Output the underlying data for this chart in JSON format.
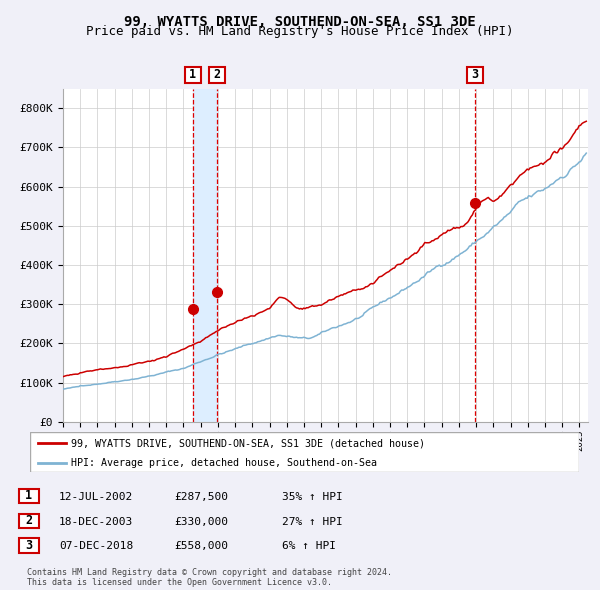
{
  "title": "99, WYATTS DRIVE, SOUTHEND-ON-SEA, SS1 3DE",
  "subtitle": "Price paid vs. HM Land Registry's House Price Index (HPI)",
  "xlim_start": 1995.0,
  "xlim_end": 2025.5,
  "ylim": [
    0,
    850000
  ],
  "yticks": [
    0,
    100000,
    200000,
    300000,
    400000,
    500000,
    600000,
    700000,
    800000
  ],
  "ytick_labels": [
    "£0",
    "£100K",
    "£200K",
    "£300K",
    "£400K",
    "£500K",
    "£600K",
    "£700K",
    "£800K"
  ],
  "sale_dates": [
    2002.53,
    2003.96,
    2018.93
  ],
  "sale_prices": [
    287500,
    330000,
    558000
  ],
  "sale_labels": [
    "1",
    "2",
    "3"
  ],
  "vline_color": "#dd0000",
  "vspan_color": "#ddeeff",
  "sale_marker_color": "#cc0000",
  "hpi_line_color": "#7fb3d3",
  "price_line_color": "#cc0000",
  "legend_label_price": "99, WYATTS DRIVE, SOUTHEND-ON-SEA, SS1 3DE (detached house)",
  "legend_label_hpi": "HPI: Average price, detached house, Southend-on-Sea",
  "table_rows": [
    [
      "1",
      "12-JUL-2002",
      "£287,500",
      "35% ↑ HPI"
    ],
    [
      "2",
      "18-DEC-2003",
      "£330,000",
      "27% ↑ HPI"
    ],
    [
      "3",
      "07-DEC-2018",
      "£558,000",
      "6% ↑ HPI"
    ]
  ],
  "footnote": "Contains HM Land Registry data © Crown copyright and database right 2024.\nThis data is licensed under the Open Government Licence v3.0.",
  "background_color": "#f0f0f8",
  "plot_bg_color": "#ffffff",
  "grid_color": "#cccccc",
  "title_fontsize": 10,
  "subtitle_fontsize": 9,
  "axis_fontsize": 8
}
